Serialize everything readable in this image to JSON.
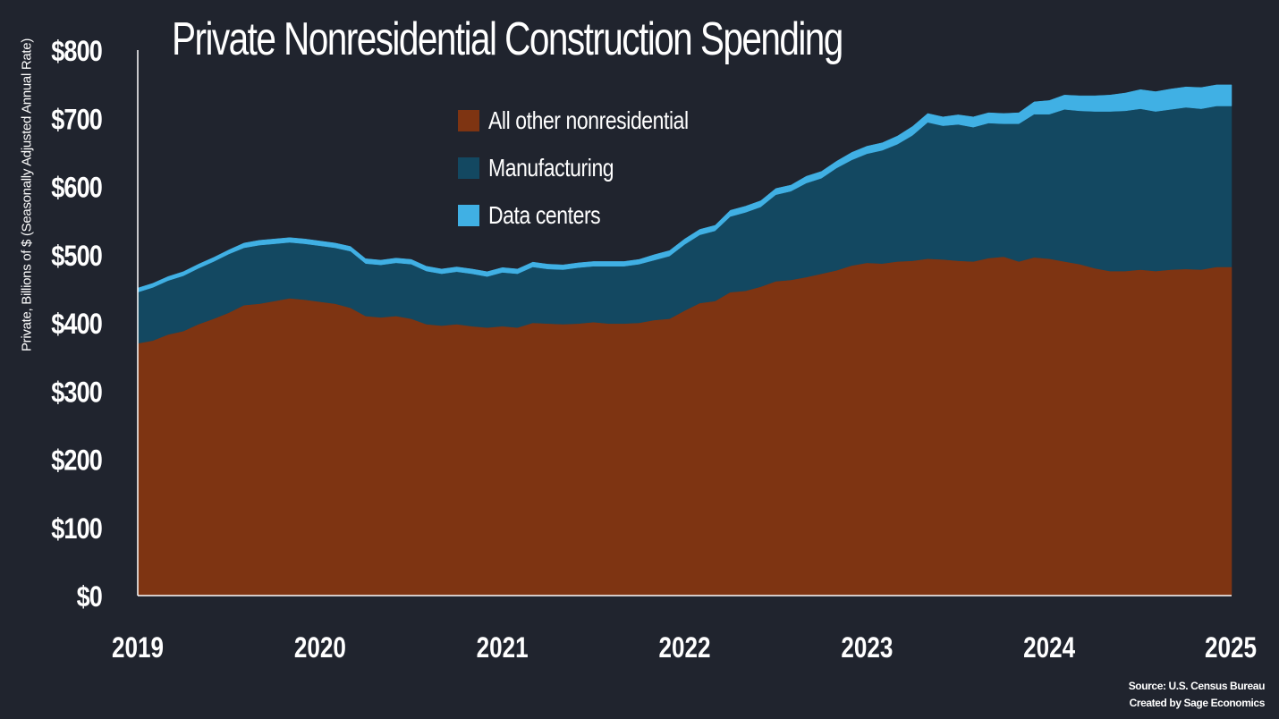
{
  "chart_data": {
    "type": "area",
    "stacked": true,
    "title": "Private Nonresidential Construction Spending",
    "ylabel": "Private, Billions of $ (Seasonally Adjusted Annual Rate)",
    "ylim": [
      0,
      800
    ],
    "xlim": [
      2019,
      2025
    ],
    "y_ticks": [
      0,
      100,
      200,
      300,
      400,
      500,
      600,
      700,
      800
    ],
    "y_tick_labels": [
      "$0",
      "$100",
      "$200",
      "$300",
      "$400",
      "$500",
      "$600",
      "$700",
      "$800"
    ],
    "x_tick_labels": [
      "2019",
      "2020",
      "2021",
      "2022",
      "2023",
      "2024",
      "2025"
    ],
    "legend_position": "top-center",
    "grid": false,
    "x": [
      2019.0,
      2019.083,
      2019.167,
      2019.25,
      2019.333,
      2019.417,
      2019.5,
      2019.583,
      2019.667,
      2019.75,
      2019.833,
      2019.917,
      2020.0,
      2020.083,
      2020.167,
      2020.25,
      2020.333,
      2020.417,
      2020.5,
      2020.583,
      2020.667,
      2020.75,
      2020.833,
      2020.917,
      2021.0,
      2021.083,
      2021.167,
      2021.25,
      2021.333,
      2021.417,
      2021.5,
      2021.583,
      2021.667,
      2021.75,
      2021.833,
      2021.917,
      2022.0,
      2022.083,
      2022.167,
      2022.25,
      2022.333,
      2022.417,
      2022.5,
      2022.583,
      2022.667,
      2022.75,
      2022.833,
      2022.917,
      2023.0,
      2023.083,
      2023.167,
      2023.25,
      2023.333,
      2023.417,
      2023.5,
      2023.583,
      2023.667,
      2023.75,
      2023.833,
      2023.917,
      2024.0,
      2024.083,
      2024.167,
      2024.25,
      2024.333,
      2024.417,
      2024.5,
      2024.583,
      2024.667,
      2024.75,
      2024.833,
      2024.917,
      2025.0
    ],
    "series": [
      {
        "name": "All other nonresidential",
        "color": "#7e3412",
        "values": [
          370,
          374,
          383,
          388,
          398,
          406,
          415,
          426,
          428,
          432,
          436,
          434,
          431,
          428,
          422,
          410,
          408,
          410,
          406,
          398,
          396,
          398,
          395,
          393,
          395,
          393,
          400,
          399,
          398,
          399,
          401,
          399,
          399,
          400,
          404,
          406,
          418,
          429,
          432,
          445,
          447,
          453,
          461,
          463,
          467,
          472,
          477,
          484,
          488,
          487,
          490,
          491,
          494,
          493,
          491,
          490,
          495,
          497,
          490,
          496,
          494,
          490,
          486,
          480,
          476,
          476,
          478,
          476,
          478,
          479,
          478,
          482,
          482
        ]
      },
      {
        "name": "Manufacturing",
        "color": "#134861",
        "values": [
          75,
          78,
          79,
          81,
          82,
          84,
          86,
          84,
          86,
          84,
          82,
          82,
          82,
          82,
          83,
          77,
          77,
          78,
          80,
          78,
          76,
          77,
          77,
          75,
          79,
          79,
          82,
          80,
          80,
          82,
          82,
          84,
          84,
          86,
          88,
          92,
          97,
          100,
          103,
          111,
          115,
          117,
          127,
          130,
          138,
          140,
          150,
          155,
          160,
          166,
          172,
          184,
          200,
          196,
          200,
          197,
          198,
          195,
          202,
          210,
          212,
          223,
          225,
          230,
          234,
          235,
          236,
          234,
          235,
          237,
          236,
          236,
          236
        ]
      },
      {
        "name": "Data centers",
        "color": "#40b0e4",
        "values": [
          6,
          6,
          6,
          6,
          6,
          6,
          6,
          7,
          7,
          7,
          7,
          7,
          7,
          7,
          7,
          7,
          7,
          7,
          7,
          7,
          7,
          7,
          7,
          7,
          7,
          7,
          7,
          7,
          7,
          7,
          7,
          7,
          7,
          7,
          8,
          8,
          8,
          8,
          8,
          9,
          9,
          9,
          9,
          9,
          10,
          10,
          10,
          11,
          11,
          11,
          12,
          13,
          13,
          13,
          14,
          15,
          15,
          15,
          16,
          18,
          20,
          21,
          22,
          23,
          24,
          26,
          28,
          29,
          30,
          30,
          31,
          31,
          31
        ]
      }
    ]
  },
  "footer": {
    "source": "Source: U.S. Census Bureau",
    "created_by": "Created by Sage Economics"
  }
}
